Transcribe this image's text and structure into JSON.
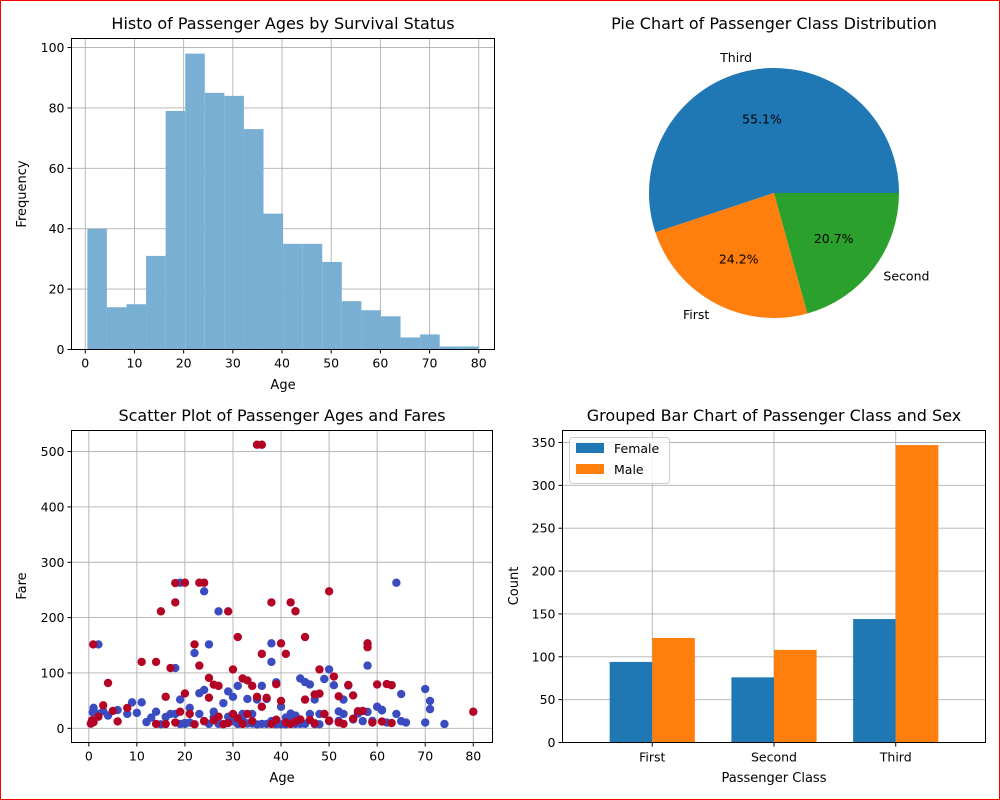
{
  "chart_data": [
    {
      "type": "bar",
      "subtype": "histogram",
      "title": "Histo of Passenger Ages by Survival Status",
      "xlabel": "Age",
      "ylabel": "Frequency",
      "xlim": [
        -2.8,
        83.2
      ],
      "ylim": [
        0,
        103
      ],
      "xticks": [
        0,
        10,
        20,
        30,
        40,
        50,
        60,
        70,
        80
      ],
      "yticks": [
        0,
        20,
        40,
        60,
        80,
        100
      ],
      "grid": true,
      "color": "#7aafd4",
      "bin_edges": [
        0.42,
        4.4,
        8.38,
        12.36,
        16.34,
        20.32,
        24.3,
        28.28,
        32.26,
        36.24,
        40.22,
        44.2,
        48.18,
        52.16,
        56.14,
        60.12,
        64.1,
        68.08,
        72.06,
        76.04,
        80.0
      ],
      "values": [
        40,
        14,
        15,
        31,
        79,
        98,
        85,
        84,
        73,
        45,
        35,
        35,
        29,
        16,
        13,
        11,
        4,
        5,
        1,
        1
      ]
    },
    {
      "type": "pie",
      "title": "Pie Chart of Passenger Class Distribution",
      "labels": [
        "Third",
        "First",
        "Second"
      ],
      "values": [
        55.1,
        24.2,
        20.7
      ],
      "pct_labels": [
        "55.1%",
        "24.2%",
        "20.7%"
      ],
      "colors": [
        "#1f77b4",
        "#ff7f0e",
        "#2ca02c"
      ]
    },
    {
      "type": "scatter",
      "title": "Scatter Plot of Passenger Ages and Fares",
      "xlabel": "Age",
      "ylabel": "Fare",
      "xlim": [
        -3.6,
        84.0
      ],
      "ylim": [
        -25.6,
        538.0
      ],
      "xticks": [
        0,
        10,
        20,
        30,
        40,
        50,
        60,
        70,
        80
      ],
      "yticks": [
        0,
        100,
        200,
        300,
        400,
        500
      ],
      "grid": true,
      "series": [
        {
          "color": "#3b4cc0",
          "points": [
            [
              0.83,
              29
            ],
            [
              1,
              37
            ],
            [
              2,
              26
            ],
            [
              2,
              151.5
            ],
            [
              3,
              31
            ],
            [
              4,
              23
            ],
            [
              6,
              33
            ],
            [
              8,
              26
            ],
            [
              9,
              46.9
            ],
            [
              10,
              27.9
            ],
            [
              11,
              46.9
            ],
            [
              12,
              11.2
            ],
            [
              13,
              19.5
            ],
            [
              14,
              30
            ],
            [
              15,
              7.2
            ],
            [
              16,
              20.5
            ],
            [
              17,
              26
            ],
            [
              18,
              108.9
            ],
            [
              19,
              263
            ],
            [
              19,
              52
            ],
            [
              20,
              9.8
            ],
            [
              21,
              37
            ],
            [
              22,
              136
            ],
            [
              23,
              63.4
            ],
            [
              24,
              247.5
            ],
            [
              24,
              69.3
            ],
            [
              25,
              151.6
            ],
            [
              26,
              30
            ],
            [
              27,
              211.3
            ],
            [
              28,
              45.5
            ],
            [
              29,
              66.6
            ],
            [
              30,
              56.9
            ],
            [
              31,
              76.7
            ],
            [
              32,
              15.5
            ],
            [
              33,
              53.1
            ],
            [
              34,
              26
            ],
            [
              35,
              52
            ],
            [
              36,
              76.7
            ],
            [
              37,
              53.1
            ],
            [
              38,
              153.5
            ],
            [
              38,
              120
            ],
            [
              39,
              83.2
            ],
            [
              40,
              39
            ],
            [
              41,
              19.5
            ],
            [
              42,
              26.6
            ],
            [
              43,
              7.9
            ],
            [
              44,
              90
            ],
            [
              45,
              83.5
            ],
            [
              46,
              79.2
            ],
            [
              47,
              52
            ],
            [
              48,
              25.9
            ],
            [
              49,
              89.1
            ],
            [
              50,
              106.4
            ],
            [
              51,
              77.9
            ],
            [
              52,
              30.5
            ],
            [
              53,
              51.9
            ],
            [
              54,
              77.3
            ],
            [
              55,
              16
            ],
            [
              56,
              30.7
            ],
            [
              57,
              13
            ],
            [
              58,
              113.3
            ],
            [
              59,
              13.5
            ],
            [
              60,
              39
            ],
            [
              61,
              33.5
            ],
            [
              62,
              10.5
            ],
            [
              63,
              77.9
            ],
            [
              64,
              26
            ],
            [
              64,
              263
            ],
            [
              65,
              61.9
            ],
            [
              66,
              10.5
            ],
            [
              70,
              71
            ],
            [
              70,
              10.5
            ],
            [
              71,
              49.5
            ],
            [
              71,
              34.7
            ],
            [
              74,
              7.8
            ],
            [
              20,
              7.9
            ],
            [
              22,
              7.3
            ],
            [
              25,
              8.1
            ],
            [
              28,
              7.8
            ],
            [
              30,
              13
            ],
            [
              33,
              8.7
            ],
            [
              35,
              7.1
            ],
            [
              37,
              7.9
            ],
            [
              40,
              7.2
            ],
            [
              42,
              13
            ],
            [
              45,
              8.1
            ],
            [
              48,
              7.3
            ],
            [
              52,
              13.5
            ],
            [
              19,
              7.8
            ],
            [
              21,
              10.5
            ],
            [
              24,
              13
            ],
            [
              27,
              7.9
            ],
            [
              31,
              7.8
            ],
            [
              34,
              8.7
            ],
            [
              36,
              7.9
            ],
            [
              39,
              7.2
            ],
            [
              41,
              7.1
            ],
            [
              44,
              8.1
            ],
            [
              47,
              7.5
            ],
            [
              50,
              13
            ],
            [
              18,
              26
            ],
            [
              23,
              26
            ],
            [
              26,
              20.2
            ],
            [
              29,
              21
            ],
            [
              32,
              26
            ],
            [
              38,
              13
            ],
            [
              43,
              23
            ],
            [
              46,
              26
            ],
            [
              49,
              26
            ],
            [
              53,
              26
            ],
            [
              56,
              26.6
            ],
            [
              58,
              29.7
            ],
            [
              61,
              32.3
            ],
            [
              65,
              13
            ]
          ]
        },
        {
          "color": "#b40426",
          "points": [
            [
              0.42,
              8.5
            ],
            [
              0.67,
              14.5
            ],
            [
              0.92,
              151.5
            ],
            [
              1,
              11.1
            ],
            [
              2,
              21.1
            ],
            [
              3,
              41.6
            ],
            [
              4,
              81.9
            ],
            [
              5,
              31.4
            ],
            [
              6,
              12.5
            ],
            [
              8,
              36.8
            ],
            [
              11,
              120
            ],
            [
              14,
              120
            ],
            [
              15,
              211.3
            ],
            [
              16,
              57
            ],
            [
              17,
              108.9
            ],
            [
              18,
              227.5
            ],
            [
              18,
              262.4
            ],
            [
              20,
              263
            ],
            [
              22,
              151.5
            ],
            [
              23,
              113.3
            ],
            [
              23,
              263
            ],
            [
              24,
              263
            ],
            [
              25,
              91.1
            ],
            [
              26,
              78.9
            ],
            [
              27,
              76.7
            ],
            [
              29,
              211.3
            ],
            [
              30,
              106.4
            ],
            [
              31,
              164.9
            ],
            [
              32,
              90
            ],
            [
              33,
              86.5
            ],
            [
              34,
              76.7
            ],
            [
              35,
              512.3
            ],
            [
              36,
              512.3
            ],
            [
              36,
              134.5
            ],
            [
              38,
              227.5
            ],
            [
              39,
              79.7
            ],
            [
              40,
              153.5
            ],
            [
              41,
              134.5
            ],
            [
              42,
              227.5
            ],
            [
              43,
              211.5
            ],
            [
              45,
              164.9
            ],
            [
              47,
              61.2
            ],
            [
              48,
              106.4
            ],
            [
              50,
              247.5
            ],
            [
              51,
              93.5
            ],
            [
              54,
              78.3
            ],
            [
              55,
              59.4
            ],
            [
              58,
              153.5
            ],
            [
              58,
              146.5
            ],
            [
              60,
              79.2
            ],
            [
              62,
              80
            ],
            [
              63,
              78
            ],
            [
              80,
              30
            ],
            [
              19,
              30
            ],
            [
              21,
              26
            ],
            [
              24,
              13
            ],
            [
              27,
              21
            ],
            [
              28,
              7.2
            ],
            [
              30,
              26
            ],
            [
              31,
              18
            ],
            [
              33,
              26
            ],
            [
              36,
              39
            ],
            [
              39,
              15.5
            ],
            [
              42,
              7.8
            ],
            [
              44,
              16.1
            ],
            [
              46,
              15.2
            ],
            [
              49,
              25.9
            ],
            [
              52,
              10.5
            ],
            [
              55,
              17.4
            ],
            [
              57,
              31.3
            ],
            [
              61,
              12.3
            ],
            [
              63,
              9.6
            ],
            [
              20,
              63
            ],
            [
              25,
              55.4
            ],
            [
              35,
              57
            ],
            [
              37,
              55
            ],
            [
              40,
              49.5
            ],
            [
              45,
              51.9
            ],
            [
              48,
              62.7
            ],
            [
              52,
              57.9
            ],
            [
              56,
              30.7
            ],
            [
              14,
              7.9
            ],
            [
              16,
              7.8
            ],
            [
              18,
              10.5
            ],
            [
              22,
              7.2
            ],
            [
              26,
              14.5
            ],
            [
              29,
              9.5
            ],
            [
              32,
              7.8
            ],
            [
              34,
              13
            ],
            [
              38,
              7.9
            ],
            [
              41,
              10.5
            ],
            [
              43,
              12.5
            ],
            [
              47,
              9
            ],
            [
              50,
              13.9
            ],
            [
              53,
              8
            ],
            [
              59,
              10.5
            ]
          ]
        }
      ]
    },
    {
      "type": "bar",
      "title": "Grouped Bar Chart of Passenger Class and Sex",
      "xlabel": "Passenger Class",
      "ylabel": "Count",
      "categories": [
        "First",
        "Second",
        "Third"
      ],
      "ylim": [
        0,
        364
      ],
      "yticks": [
        0,
        50,
        100,
        150,
        200,
        250,
        300,
        350
      ],
      "grid": true,
      "legend": "top-left",
      "series": [
        {
          "name": "Female",
          "values": [
            94,
            76,
            144
          ],
          "color": "#1f77b4"
        },
        {
          "name": "Male",
          "values": [
            122,
            108,
            347
          ],
          "color": "#ff7f0e"
        }
      ]
    }
  ]
}
